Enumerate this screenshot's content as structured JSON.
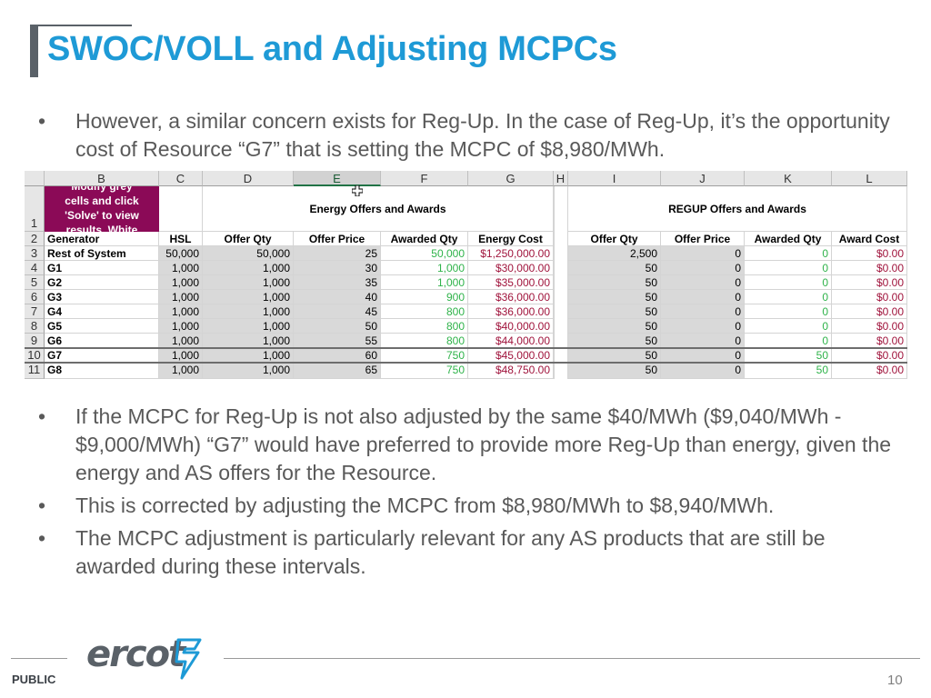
{
  "title": "SWOC/VOLL and Adjusting MCPCs",
  "bullets_top": [
    "However, a similar concern exists for Reg-Up.  In the case of Reg-Up, it’s the opportunity cost of Resource “G7” that is setting the MCPC of $8,980/MWh."
  ],
  "bullets_bottom": [
    "If the MCPC for Reg-Up is not also adjusted by the same $40/MWh ($9,040/MWh - $9,000/MWh) “G7” would have preferred to provide more Reg-Up than energy, given the energy and AS offers for the Resource.",
    "This is corrected by adjusting the MCPC from $8,980/MWh to $8,940/MWh.",
    "The MCPC adjustment is particularly relevant for any AS products that are still be awarded during these intervals."
  ],
  "bullet_glyph": "•",
  "sheet": {
    "columns": [
      "B",
      "C",
      "D",
      "E",
      "F",
      "G",
      "H",
      "I",
      "J",
      "K",
      "L"
    ],
    "selected_column": "E",
    "note_lines": [
      "Modify grey",
      "cells and click",
      "'Solve' to view",
      "results. White"
    ],
    "energy_group": "Energy Offers and Awards",
    "regup_group": "REGUP Offers and Awards",
    "headers": [
      "Generator",
      "HSL",
      "Offer Qty",
      "Offer Price",
      "Awarded Qty",
      "Energy Cost",
      "Offer Qty",
      "Offer Price",
      "Awarded Qty",
      "Award Cost"
    ],
    "row_numbers": [
      "1",
      "2",
      "3",
      "4",
      "5",
      "6",
      "7",
      "8",
      "9",
      "10",
      "11"
    ],
    "rows": [
      [
        "Rest of System",
        "50,000",
        "50,000",
        "25",
        "50,000",
        "$1,250,000.00",
        "2,500",
        "0",
        "0",
        "$0.00"
      ],
      [
        "G1",
        "1,000",
        "1,000",
        "30",
        "1,000",
        "$30,000.00",
        "50",
        "0",
        "0",
        "$0.00"
      ],
      [
        "G2",
        "1,000",
        "1,000",
        "35",
        "1,000",
        "$35,000.00",
        "50",
        "0",
        "0",
        "$0.00"
      ],
      [
        "G3",
        "1,000",
        "1,000",
        "40",
        "900",
        "$36,000.00",
        "50",
        "0",
        "0",
        "$0.00"
      ],
      [
        "G4",
        "1,000",
        "1,000",
        "45",
        "800",
        "$36,000.00",
        "50",
        "0",
        "0",
        "$0.00"
      ],
      [
        "G5",
        "1,000",
        "1,000",
        "50",
        "800",
        "$40,000.00",
        "50",
        "0",
        "0",
        "$0.00"
      ],
      [
        "G6",
        "1,000",
        "1,000",
        "55",
        "800",
        "$44,000.00",
        "50",
        "0",
        "0",
        "$0.00"
      ],
      [
        "G7",
        "1,000",
        "1,000",
        "60",
        "750",
        "$45,000.00",
        "50",
        "0",
        "50",
        "$0.00"
      ],
      [
        "G8",
        "1,000",
        "1,000",
        "65",
        "750",
        "$48,750.00",
        "50",
        "0",
        "50",
        "$0.00"
      ]
    ]
  },
  "footer": {
    "logo": "ercot",
    "label": "PUBLIC",
    "page": "10"
  },
  "colors": {
    "title": "#1e9ad6",
    "text": "#595959",
    "note_bg": "#8b0a57",
    "award_green": "#2fb34a",
    "cost_red": "#a0143c"
  }
}
